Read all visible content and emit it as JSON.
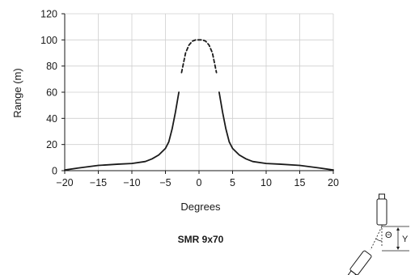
{
  "chart_data": {
    "type": "line",
    "title": "SMR 9x70",
    "xlabel": "Degrees",
    "ylabel": "Range (m)",
    "xlim": [
      -20,
      20
    ],
    "ylim": [
      0,
      120
    ],
    "xticks": [
      -20,
      -15,
      -10,
      -5,
      0,
      5,
      10,
      15,
      20
    ],
    "yticks": [
      0,
      20,
      40,
      60,
      80,
      100,
      120
    ],
    "xtick_labels": [
      "−20",
      "−15",
      "−10",
      "−5",
      "0",
      "5",
      "10",
      "15",
      "20"
    ],
    "ytick_labels": [
      "0",
      "20",
      "40",
      "60",
      "80",
      "100",
      "120"
    ],
    "grid": true,
    "legend": null,
    "series": [
      {
        "style": "solid",
        "color": "#1a1a1a",
        "x": [
          -20,
          -18,
          -15,
          -12,
          -10,
          -8,
          -7,
          -6,
          -5,
          -4.5,
          -4,
          -3.5,
          -3
        ],
        "y": [
          0.5,
          2,
          4,
          5,
          5.5,
          7,
          9,
          12,
          17,
          22,
          32,
          45,
          60
        ]
      },
      {
        "style": "dashed",
        "color": "#1a1a1a",
        "x": [
          -2.6,
          -2,
          -1.5,
          -1,
          -0.5,
          0,
          0.5,
          1,
          1.5,
          2,
          2.6
        ],
        "y": [
          75,
          90,
          96,
          99,
          100,
          100,
          100,
          99,
          96,
          90,
          75
        ]
      },
      {
        "style": "solid",
        "color": "#1a1a1a",
        "x": [
          3,
          3.5,
          4,
          4.5,
          5,
          6,
          7,
          8,
          10,
          12,
          15,
          18,
          20
        ],
        "y": [
          60,
          45,
          32,
          22,
          17,
          12,
          9,
          7,
          5.5,
          5,
          4,
          2,
          0.5
        ]
      }
    ]
  },
  "diagram": {
    "angle_label": "Θ",
    "offset_label": "Y"
  }
}
